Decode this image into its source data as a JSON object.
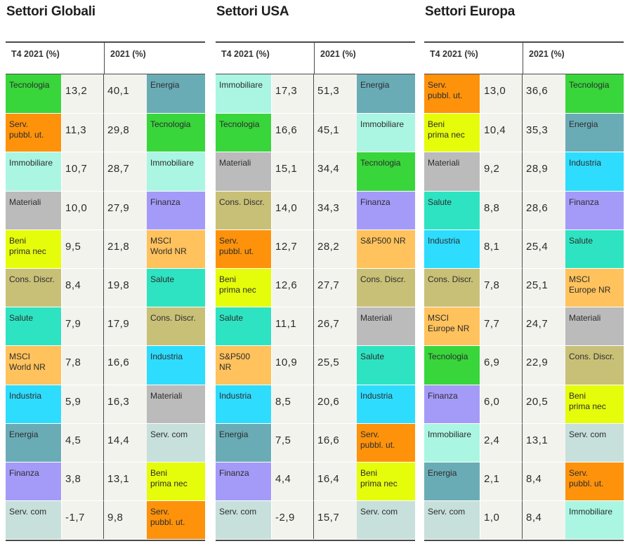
{
  "colors": {
    "Tecnologia": "#38d63b",
    "Serv. pubbl. ut.": "#fe920b",
    "Immobiliare": "#aaf6e2",
    "Materiali": "#bbbbbb",
    "Beni prima nec": "#e5fd0a",
    "Cons. Discr.": "#c9c078",
    "Salute": "#2ee3c1",
    "MSCI World NR": "#ffc25c",
    "S&P500 NR": "#ffc25c",
    "MSCI Europe NR": "#ffc25c",
    "Industria": "#2edcfe",
    "Energia": "#6aacb6",
    "Finanza": "#a49bf9",
    "Serv. com": "#c7e0dc"
  },
  "chart_data": [
    {
      "type": "table",
      "title": "Settori Globali",
      "columns": [
        "T4 2021 (%)",
        "2021 (%)"
      ],
      "q4_2021": [
        {
          "sector": "Tecnologia",
          "label": "Tecnologia",
          "value": "13,2"
        },
        {
          "sector": "Serv. pubbl. ut.",
          "label": "Serv.\npubbl. ut.",
          "value": "11,3"
        },
        {
          "sector": "Immobiliare",
          "label": "Immobiliare",
          "value": "10,7"
        },
        {
          "sector": "Materiali",
          "label": "Materiali",
          "value": "10,0"
        },
        {
          "sector": "Beni prima nec",
          "label": "Beni\nprima nec",
          "value": "9,5"
        },
        {
          "sector": "Cons. Discr.",
          "label": "Cons. Discr.",
          "value": "8,4"
        },
        {
          "sector": "Salute",
          "label": "Salute",
          "value": "7,9"
        },
        {
          "sector": "MSCI World NR",
          "label": "MSCI\nWorld NR",
          "value": "7,8"
        },
        {
          "sector": "Industria",
          "label": "Industria",
          "value": "5,9"
        },
        {
          "sector": "Energia",
          "label": "Energia",
          "value": "4,5"
        },
        {
          "sector": "Finanza",
          "label": "Finanza",
          "value": "3,8"
        },
        {
          "sector": "Serv. com",
          "label": "Serv. com",
          "value": "-1,7"
        }
      ],
      "year_2021": [
        {
          "sector": "Energia",
          "label": "Energia",
          "value": "40,1"
        },
        {
          "sector": "Tecnologia",
          "label": "Tecnologia",
          "value": "29,8"
        },
        {
          "sector": "Immobiliare",
          "label": "Immobiliare",
          "value": "28,7"
        },
        {
          "sector": "Finanza",
          "label": "Finanza",
          "value": "27,9"
        },
        {
          "sector": "MSCI World NR",
          "label": "MSCI\nWorld NR",
          "value": "21,8"
        },
        {
          "sector": "Salute",
          "label": "Salute",
          "value": "19,8"
        },
        {
          "sector": "Cons. Discr.",
          "label": "Cons. Discr.",
          "value": "17,9"
        },
        {
          "sector": "Industria",
          "label": "Industria",
          "value": "16,6"
        },
        {
          "sector": "Materiali",
          "label": "Materiali",
          "value": "16,3"
        },
        {
          "sector": "Serv. com",
          "label": "Serv. com",
          "value": "14,4"
        },
        {
          "sector": "Beni prima nec",
          "label": "Beni\nprima nec",
          "value": "13,1"
        },
        {
          "sector": "Serv. pubbl. ut.",
          "label": "Serv.\npubbl. ut.",
          "value": "9,8"
        }
      ]
    },
    {
      "type": "table",
      "title": "Settori USA",
      "columns": [
        "T4 2021 (%)",
        "2021 (%)"
      ],
      "q4_2021": [
        {
          "sector": "Immobiliare",
          "label": "Immobiliare",
          "value": "17,3"
        },
        {
          "sector": "Tecnologia",
          "label": "Tecnologia",
          "value": "16,6"
        },
        {
          "sector": "Materiali",
          "label": "Materiali",
          "value": "15,1"
        },
        {
          "sector": "Cons. Discr.",
          "label": "Cons. Discr.",
          "value": "14,0"
        },
        {
          "sector": "Serv. pubbl. ut.",
          "label": "Serv.\npubbl. ut.",
          "value": "12,7"
        },
        {
          "sector": "Beni prima nec",
          "label": "Beni\nprima nec",
          "value": "12,6"
        },
        {
          "sector": "Salute",
          "label": "Salute",
          "value": "11,1"
        },
        {
          "sector": "S&P500 NR",
          "label": "S&P500\nNR",
          "value": "10,9"
        },
        {
          "sector": "Industria",
          "label": "Industria",
          "value": "8,5"
        },
        {
          "sector": "Energia",
          "label": "Energia",
          "value": "7,5"
        },
        {
          "sector": "Finanza",
          "label": "Finanza",
          "value": "4,4"
        },
        {
          "sector": "Serv. com",
          "label": "Serv. com",
          "value": "-2,9"
        }
      ],
      "year_2021": [
        {
          "sector": "Energia",
          "label": "Energia",
          "value": "51,3"
        },
        {
          "sector": "Immobiliare",
          "label": "Immobiliare",
          "value": "45,1"
        },
        {
          "sector": "Tecnologia",
          "label": "Tecnologia",
          "value": "34,4"
        },
        {
          "sector": "Finanza",
          "label": "Finanza",
          "value": "34,3"
        },
        {
          "sector": "S&P500 NR",
          "label": "S&P500 NR",
          "value": "28,2"
        },
        {
          "sector": "Cons. Discr.",
          "label": "Cons. Discr.",
          "value": "27,7"
        },
        {
          "sector": "Materiali",
          "label": "Materiali",
          "value": "26,7"
        },
        {
          "sector": "Salute",
          "label": "Salute",
          "value": "25,5"
        },
        {
          "sector": "Industria",
          "label": "Industria",
          "value": "20,6"
        },
        {
          "sector": "Serv. pubbl. ut.",
          "label": "Serv.\npubbl. ut.",
          "value": "16,6"
        },
        {
          "sector": "Beni prima nec",
          "label": "Beni\nprima nec",
          "value": "16,4"
        },
        {
          "sector": "Serv. com",
          "label": "Serv. com",
          "value": "15,7"
        }
      ]
    },
    {
      "type": "table",
      "title": "Settori Europa",
      "columns": [
        "T4 2021 (%)",
        "2021 (%)"
      ],
      "q4_2021": [
        {
          "sector": "Serv. pubbl. ut.",
          "label": "Serv.\npubbl. ut.",
          "value": "13,0"
        },
        {
          "sector": "Beni prima nec",
          "label": "Beni\nprima nec",
          "value": "10,4"
        },
        {
          "sector": "Materiali",
          "label": "Materiali",
          "value": "9,2"
        },
        {
          "sector": "Salute",
          "label": "Salute",
          "value": "8,8"
        },
        {
          "sector": "Industria",
          "label": "Industria",
          "value": "8,1"
        },
        {
          "sector": "Cons. Discr.",
          "label": "Cons. Discr.",
          "value": "7,8"
        },
        {
          "sector": "MSCI Europe NR",
          "label": "MSCI\nEurope NR",
          "value": "7,7"
        },
        {
          "sector": "Tecnologia",
          "label": "Tecnologia",
          "value": "6,9"
        },
        {
          "sector": "Finanza",
          "label": "Finanza",
          "value": "6,0"
        },
        {
          "sector": "Immobiliare",
          "label": "Immobiliare",
          "value": "2,4"
        },
        {
          "sector": "Energia",
          "label": "Energia",
          "value": "2,1"
        },
        {
          "sector": "Serv. com",
          "label": "Serv. com",
          "value": "1,0"
        }
      ],
      "year_2021": [
        {
          "sector": "Tecnologia",
          "label": "Tecnologia",
          "value": "36,6"
        },
        {
          "sector": "Energia",
          "label": "Energia",
          "value": "35,3"
        },
        {
          "sector": "Industria",
          "label": "Industria",
          "value": "28,9"
        },
        {
          "sector": "Finanza",
          "label": "Finanza",
          "value": "28,6"
        },
        {
          "sector": "Salute",
          "label": "Salute",
          "value": "25,4"
        },
        {
          "sector": "MSCI Europe NR",
          "label": "MSCI\nEurope NR",
          "value": "25,1"
        },
        {
          "sector": "Materiali",
          "label": "Materiali",
          "value": "24,7"
        },
        {
          "sector": "Cons. Discr.",
          "label": "Cons. Discr.",
          "value": "22,9"
        },
        {
          "sector": "Beni prima nec",
          "label": "Beni\nprima nec",
          "value": "20,5"
        },
        {
          "sector": "Serv. com",
          "label": "Serv. com",
          "value": "13,1"
        },
        {
          "sector": "Serv. pubbl. ut.",
          "label": "Serv.\npubbl. ut.",
          "value": "8,4"
        },
        {
          "sector": "Immobiliare",
          "label": "Immobiliare",
          "value": "8,4"
        }
      ]
    }
  ]
}
